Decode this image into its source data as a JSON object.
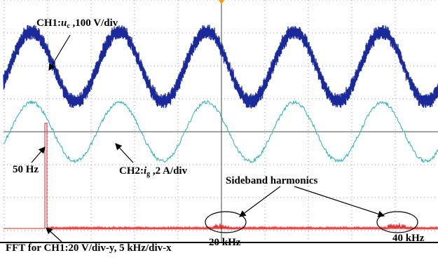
{
  "labels": {
    "ch1": {
      "prefix": "CH1:",
      "var": "u",
      "sub": "c",
      "suffix": " ,100 V/div"
    },
    "ch2": {
      "prefix": "CH2:",
      "var": "i",
      "sub": "g",
      "suffix": " ,2 A/div"
    },
    "fundamental": "50 Hz",
    "sideband": "Sideband harmonics",
    "fft": "FFT for CH1:20 V/div-y, 5 kHz/div-x",
    "harmonic1": "20 kHz",
    "harmonic2": "40 kHz"
  }
}
